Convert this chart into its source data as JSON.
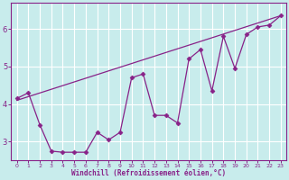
{
  "title": "",
  "xlabel": "Windchill (Refroidissement éolien,°C)",
  "ylabel": "",
  "background_color": "#c8ecec",
  "plot_color": "#882288",
  "grid_color": "#ffffff",
  "xlim": [
    -0.5,
    23.5
  ],
  "ylim": [
    2.5,
    6.7
  ],
  "yticks": [
    3,
    4,
    5,
    6
  ],
  "xticks": [
    0,
    1,
    2,
    3,
    4,
    5,
    6,
    7,
    8,
    9,
    10,
    11,
    12,
    13,
    14,
    15,
    16,
    17,
    18,
    19,
    20,
    21,
    22,
    23
  ],
  "line1_x": [
    0,
    1,
    2,
    3,
    4,
    5,
    6,
    7,
    8,
    9,
    10,
    11,
    12,
    13,
    14,
    15,
    16,
    17,
    18,
    19,
    20,
    21,
    22,
    23
  ],
  "line1_y": [
    4.15,
    4.3,
    3.45,
    2.75,
    2.72,
    2.72,
    2.72,
    3.25,
    3.05,
    3.25,
    4.7,
    4.8,
    3.7,
    3.7,
    3.5,
    5.2,
    5.45,
    4.35,
    5.8,
    4.95,
    5.85,
    6.05,
    6.1,
    6.35
  ],
  "line2_x": [
    0,
    23
  ],
  "line2_y": [
    4.1,
    6.35
  ],
  "marker": "D",
  "markersize": 2.5,
  "linewidth": 0.9
}
